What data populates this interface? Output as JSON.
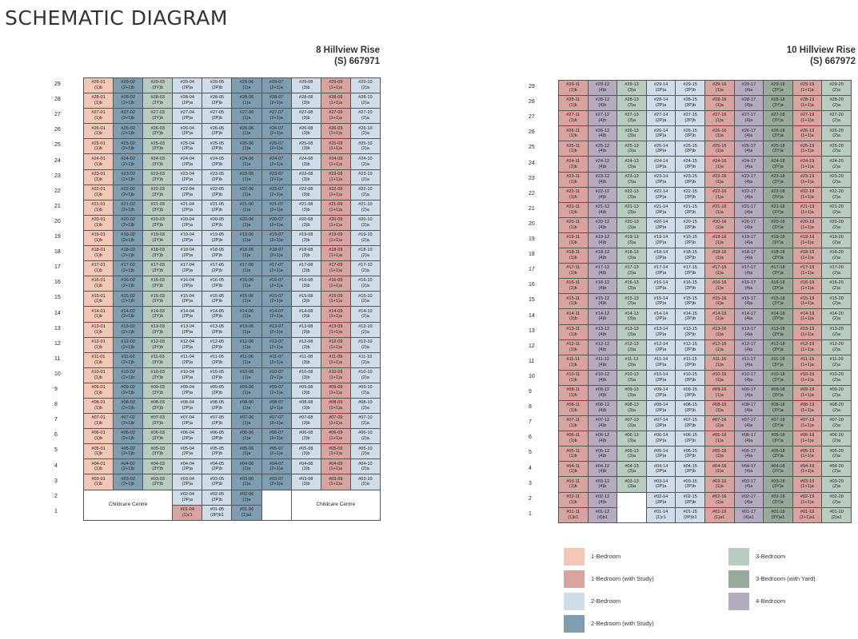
{
  "title": "SCHEMATIC DIAGRAM",
  "blocks": [
    {
      "id": "b1",
      "name": "8 Hillview Rise",
      "postal": "(S) 667971",
      "stacks": [
        "01",
        "02",
        "03",
        "04",
        "05",
        "06",
        "07",
        "08",
        "09",
        "10"
      ],
      "types": [
        "(1)b",
        "(2+1)b",
        "(3Y)b",
        "(2P)a",
        "(2P)b",
        "(1)a",
        "(2+1)a",
        "(3)b",
        "(1+1)a",
        "(2)a"
      ],
      "colors": [
        "c-1b",
        "c-2bs",
        "c-3b",
        "c-2b",
        "c-2b",
        "c-2bs",
        "c-2bs",
        "c-2b",
        "c-1bs",
        "c-2b"
      ],
      "floor_labels": [
        "29",
        "28",
        "27",
        "26",
        "25",
        "24",
        "23",
        "22",
        "21",
        "20",
        "19",
        "18",
        "17",
        "16",
        "15",
        "14",
        "13",
        "12",
        "11",
        "10",
        "9",
        "8",
        "7",
        "6",
        "5",
        "4",
        "3",
        "2",
        "1"
      ],
      "typical_floors": [
        "29",
        "28",
        "27",
        "26",
        "25",
        "24",
        "23",
        "22",
        "21",
        "20",
        "19",
        "18",
        "17",
        "16",
        "15",
        "14",
        "13",
        "12",
        "11",
        "10",
        "09",
        "08",
        "07",
        "06",
        "05",
        "04",
        "03"
      ],
      "lower": {
        "childcare_label": "Childcare Centre",
        "floor2": [
          {
            "unit": "#02-04",
            "type": "(2P)a",
            "color": "c-2b"
          },
          {
            "unit": "#02-05",
            "type": "(2P)b",
            "color": "c-2b"
          },
          {
            "unit": "#02-06",
            "type": "(1)a",
            "color": "c-2bs"
          }
        ],
        "floor1": [
          {
            "unit": "#01-04",
            "type": "(1)c1",
            "color": "c-1bs"
          },
          {
            "unit": "#01-05",
            "type": "(2P)b1",
            "color": "c-2b"
          },
          {
            "unit": "#01-06",
            "type": "(1)a1",
            "color": "c-2bs"
          }
        ]
      }
    },
    {
      "id": "b2",
      "name": "10 Hillview Rise",
      "postal": "(S) 667972",
      "stacks": [
        "11",
        "12",
        "13",
        "14",
        "15",
        "16",
        "17",
        "18",
        "19",
        "20"
      ],
      "types": [
        "(1)b",
        "(4)b",
        "(3)a",
        "(2P)a",
        "(2P)b",
        "(1)a",
        "(4)a",
        "(3Y)a",
        "(1+1)a",
        "(2)a"
      ],
      "colors": [
        "c-1bs",
        "c-4b",
        "c-3b",
        "c-2b",
        "c-2b",
        "c-1bs",
        "c-4b",
        "c-3by",
        "c-1bs",
        "c-3b"
      ],
      "floor_labels": [
        "29",
        "28",
        "27",
        "26",
        "25",
        "24",
        "23",
        "22",
        "21",
        "20",
        "19",
        "18",
        "17",
        "16",
        "15",
        "14",
        "13",
        "12",
        "11",
        "10",
        "9",
        "8",
        "7",
        "6",
        "5",
        "4",
        "3",
        "2",
        "1"
      ],
      "typical_floors": [
        "29",
        "28",
        "27",
        "26",
        "25",
        "24",
        "23",
        "22",
        "21",
        "20",
        "19",
        "18",
        "17",
        "16",
        "15",
        "14",
        "13",
        "12",
        "11",
        "10",
        "09",
        "08",
        "07",
        "06",
        "05",
        "04",
        "03"
      ],
      "lower": {
        "floor2": [
          {
            "unit": "#02-11",
            "type": "(1)b",
            "color": "c-1bs"
          },
          {
            "unit": "#02-12",
            "type": "(4)b",
            "color": "c-4b"
          },
          null,
          {
            "unit": "#02-14",
            "type": "(2P)a",
            "color": "c-2b"
          },
          {
            "unit": "#02-15",
            "type": "(2P)b",
            "color": "c-2b"
          },
          {
            "unit": "#02-16",
            "type": "(1)a",
            "color": "c-1bs"
          },
          {
            "unit": "#02-17",
            "type": "(4)a",
            "color": "c-4b"
          },
          {
            "unit": "#02-18",
            "type": "(3Y)a",
            "color": "c-3by"
          },
          {
            "unit": "#02-19",
            "type": "(1+1)a",
            "color": "c-1bs"
          },
          {
            "unit": "#02-20",
            "type": "(2)a",
            "color": "c-3b"
          }
        ],
        "floor1": [
          {
            "unit": "#01-11",
            "type": "(1)b1",
            "color": "c-1bs"
          },
          {
            "unit": "#01-12",
            "type": "(4)b1",
            "color": "c-4b"
          },
          null,
          {
            "unit": "#01-14",
            "type": "(1)c1",
            "color": "c-2b"
          },
          {
            "unit": "#01-15",
            "type": "(2P)b1",
            "color": "c-2b"
          },
          {
            "unit": "#01-16",
            "type": "(1)a1",
            "color": "c-1bs"
          },
          {
            "unit": "#01-17",
            "type": "(4)a1",
            "color": "c-4b"
          },
          {
            "unit": "#01-18",
            "type": "(3Y)a1",
            "color": "c-3by"
          },
          {
            "unit": "#01-19",
            "type": "(1+1)a1",
            "color": "c-1bs"
          },
          {
            "unit": "#01-20",
            "type": "(2)a1",
            "color": "c-3b"
          }
        ]
      }
    }
  ],
  "legend": [
    {
      "label": "1-Bedroom",
      "color": "#f3c6b5"
    },
    {
      "label": "1-Bedroom (with Study)",
      "color": "#d9a3a0"
    },
    {
      "label": "2-Bedroom",
      "color": "#cfdde8"
    },
    {
      "label": "2-Bedroom (with Study)",
      "color": "#7f9db1"
    },
    {
      "label": "3-Bedroom",
      "color": "#b8ccc0"
    },
    {
      "label": "3-Bedroom (with Yard)",
      "color": "#97aa9c"
    },
    {
      "label": "4-Bedroom",
      "color": "#b5abbe"
    }
  ]
}
